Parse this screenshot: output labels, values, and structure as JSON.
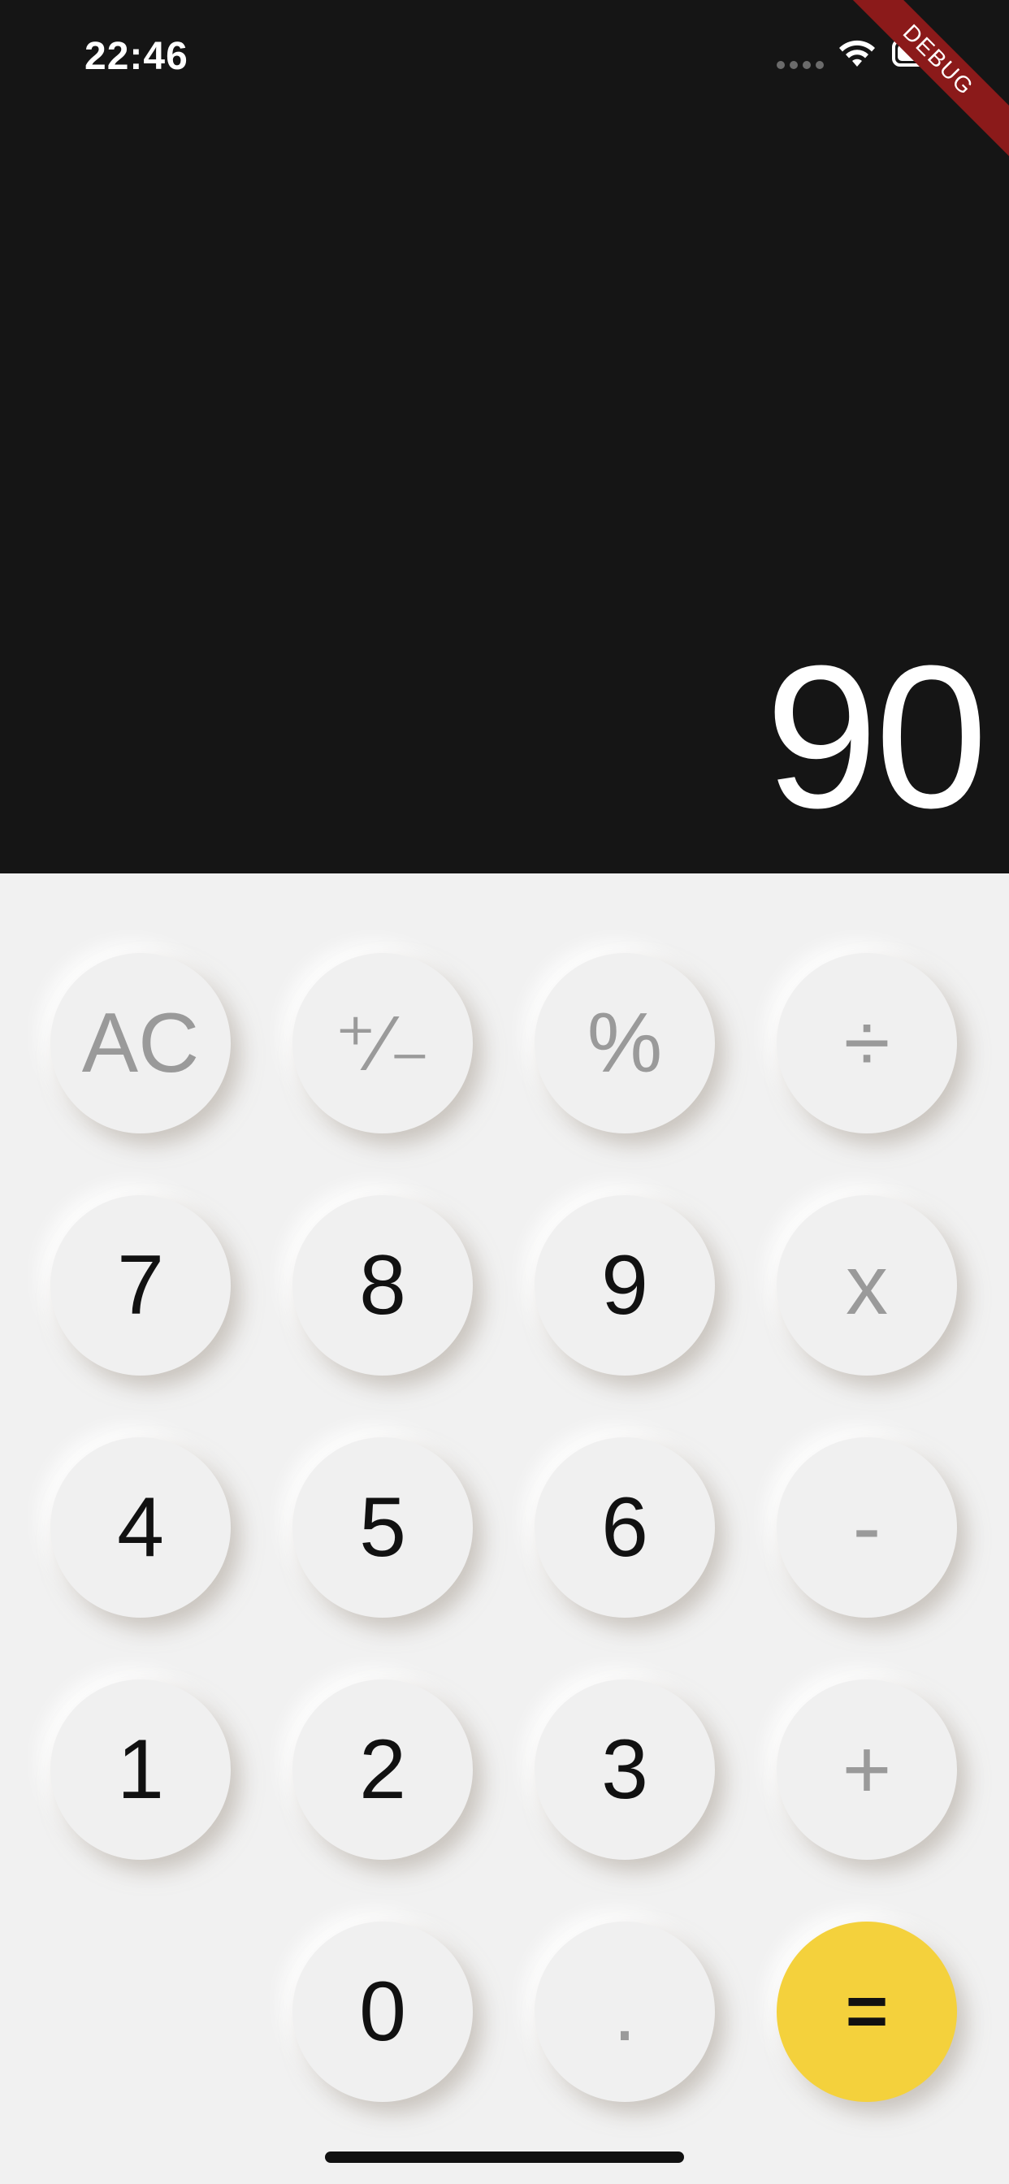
{
  "status_bar": {
    "time": "22:46",
    "debug_label": "DEBUG"
  },
  "display": {
    "result": "90"
  },
  "keys": {
    "row1": [
      "AC",
      "⁺∕₋",
      "%",
      "÷"
    ],
    "row2": [
      "7",
      "8",
      "9",
      "x"
    ],
    "row3": [
      "4",
      "5",
      "6",
      "-"
    ],
    "row4": [
      "1",
      "2",
      "3",
      "+"
    ],
    "row5": [
      "0",
      ".",
      "="
    ]
  },
  "colors": {
    "display_background": "#151515",
    "keypad_background": "#f1f1f1",
    "equals_accent": "#f4d13c",
    "function_text": "#9a9a9a",
    "digit_text": "#111111"
  },
  "icons": [
    "signal-dots-icon",
    "wifi-icon",
    "battery-icon"
  ]
}
